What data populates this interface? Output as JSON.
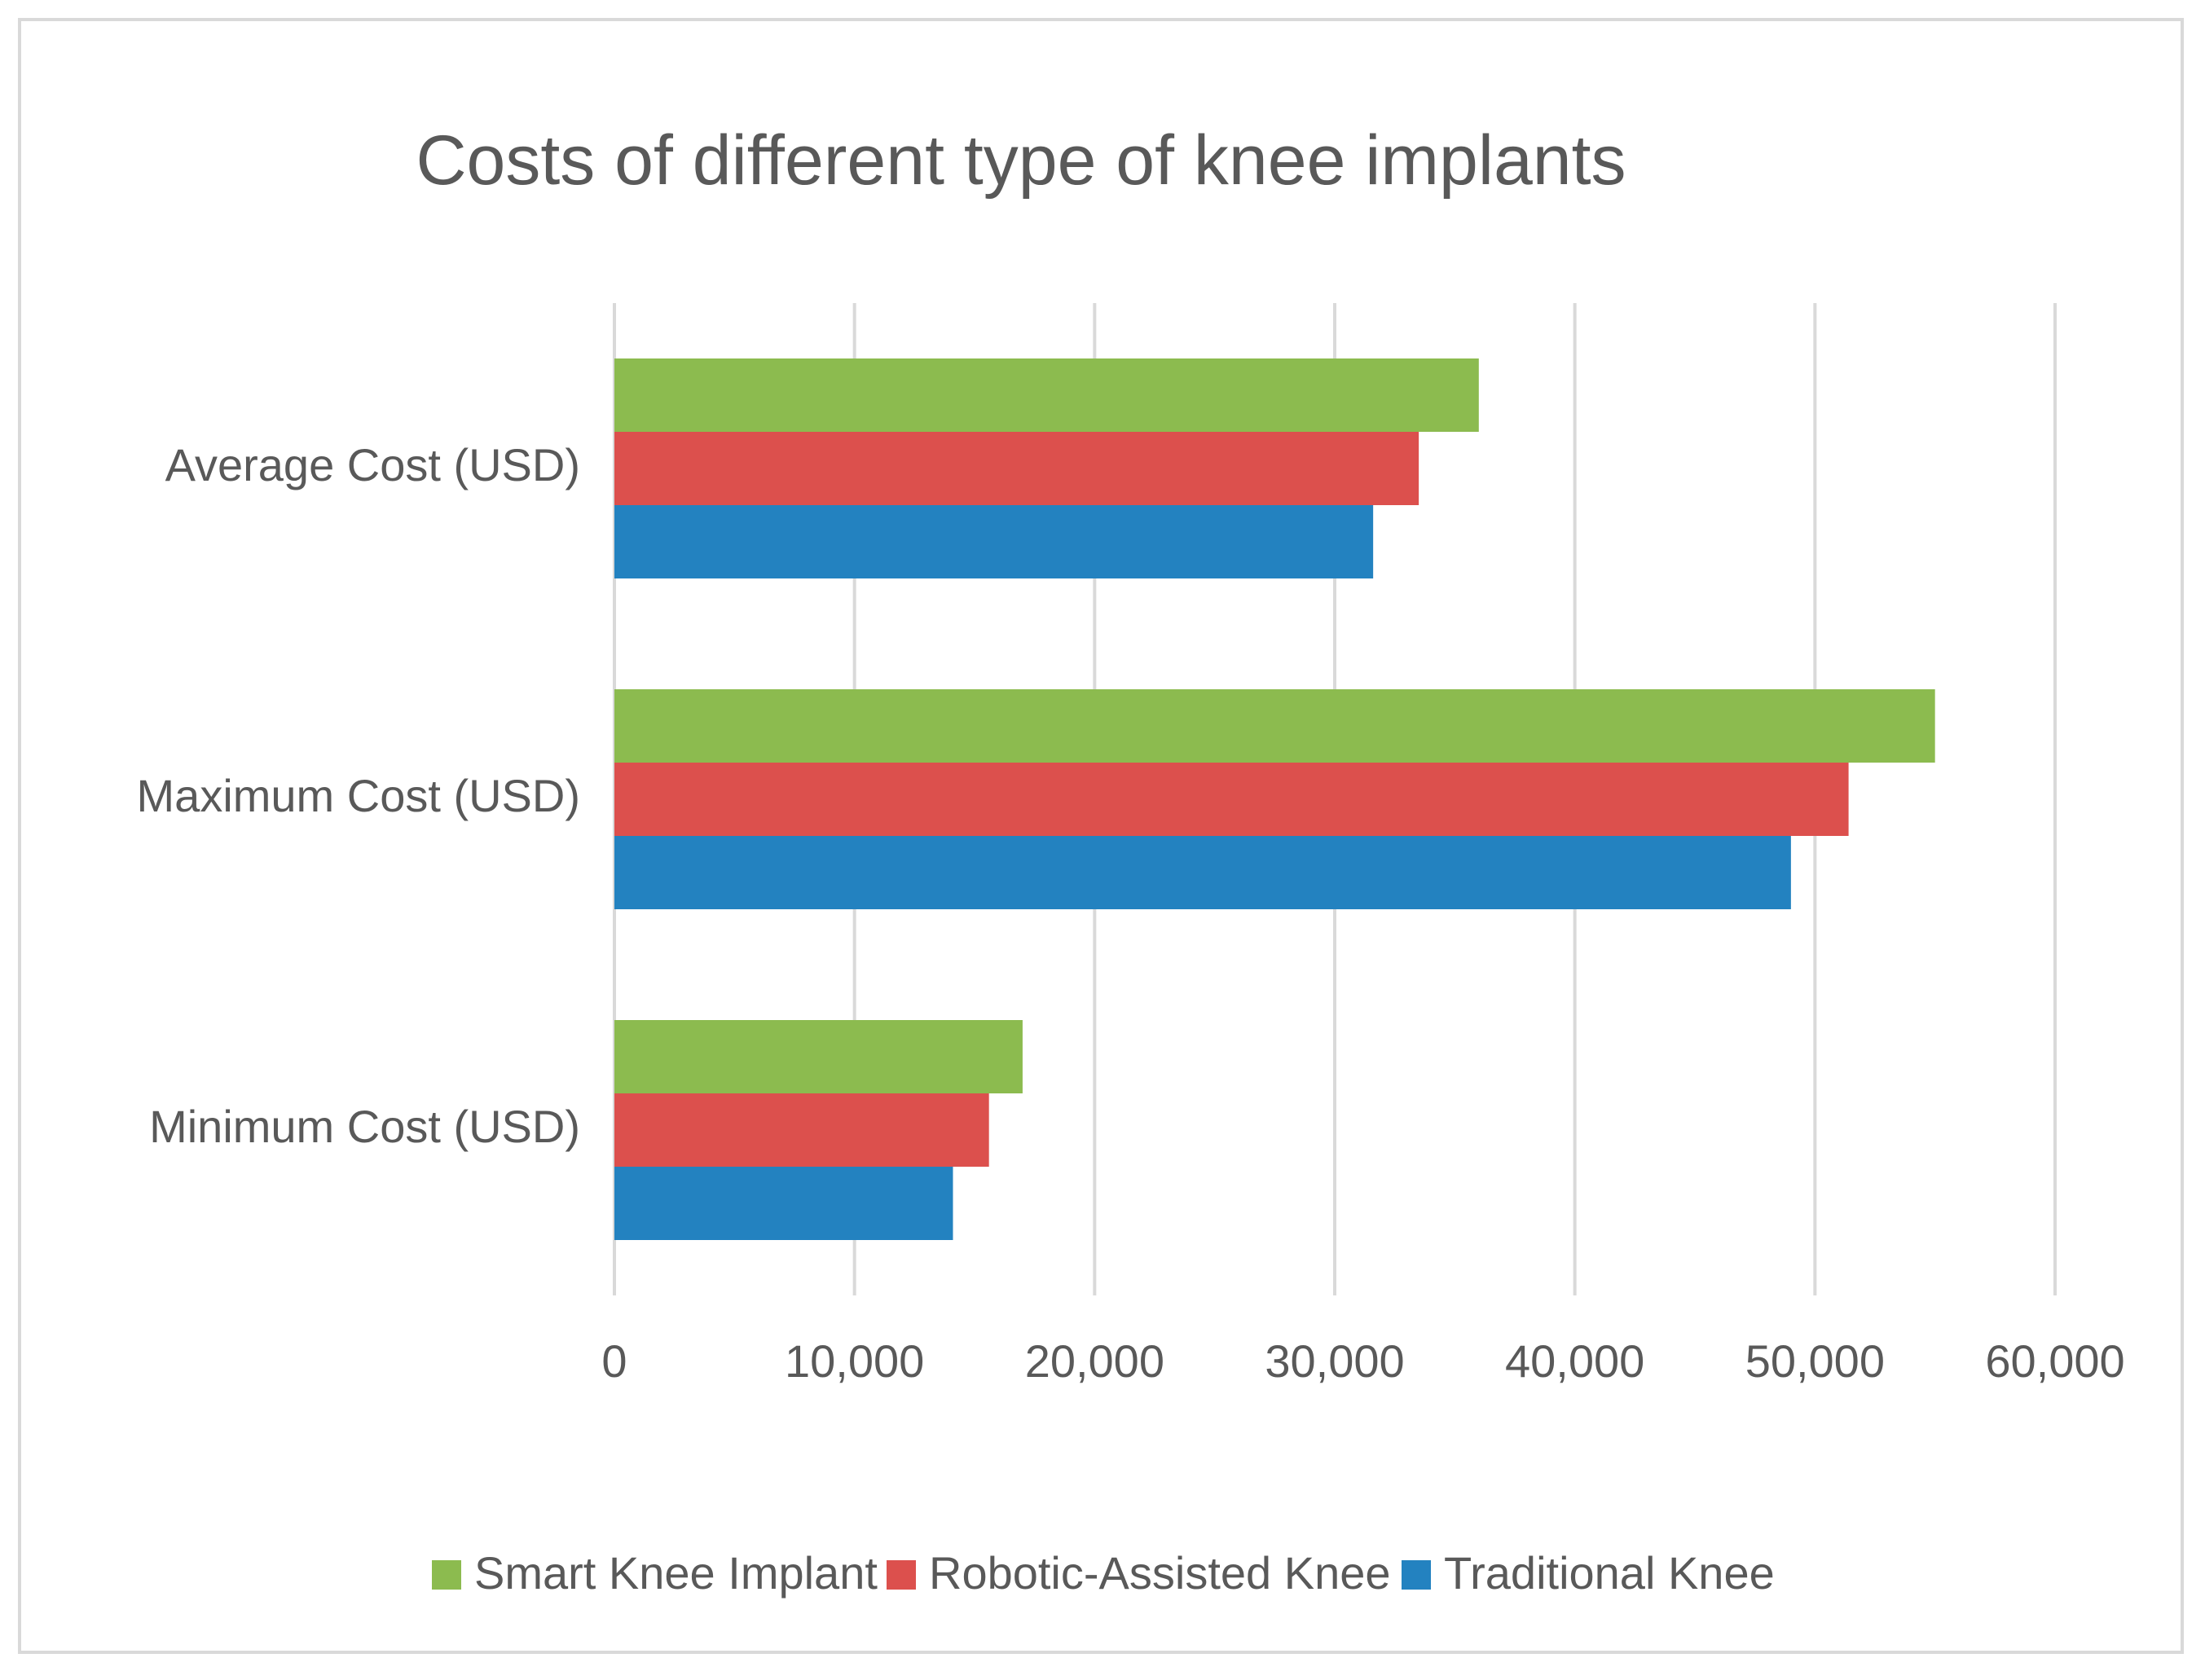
{
  "chart_data": {
    "type": "bar",
    "orientation": "horizontal",
    "title": "Costs of different type of knee implants",
    "categories": [
      "Average Cost (USD)",
      "Maximum Cost (USD)",
      "Minimum Cost (USD)"
    ],
    "series": [
      {
        "name": "Smart Knee Implant",
        "color": "#8cbb4f",
        "values": [
          36000,
          55000,
          17000
        ]
      },
      {
        "name": "Robotic-Assisted Knee",
        "color": "#dc504d",
        "values": [
          33500,
          51400,
          15600
        ]
      },
      {
        "name": "Traditional Knee",
        "color": "#2382c0",
        "values": [
          31600,
          49000,
          14100
        ]
      }
    ],
    "xlim": [
      0,
      60000
    ],
    "xticks": [
      0,
      10000,
      20000,
      30000,
      40000,
      50000,
      60000
    ],
    "xtick_labels": [
      "0",
      "10,000",
      "20,000",
      "30,000",
      "40,000",
      "50,000",
      "60,000"
    ],
    "grid": "vertical",
    "legend_position": "bottom"
  }
}
